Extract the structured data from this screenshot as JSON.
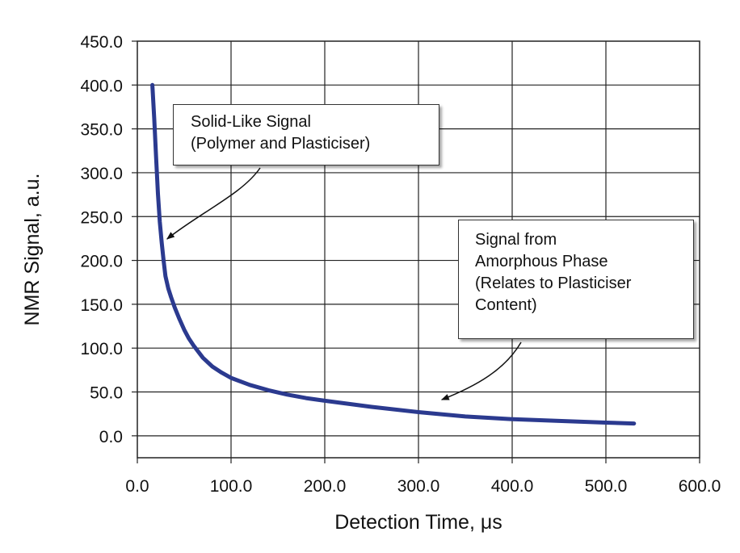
{
  "chart_data": {
    "type": "line",
    "title": "",
    "xlabel": "Detection Time, μs",
    "ylabel": "NMR Signal, a.u.",
    "xlim": [
      0,
      600
    ],
    "ylim": [
      -25,
      450
    ],
    "x_ticks": [
      "0.0",
      "100.0",
      "200.0",
      "300.0",
      "400.0",
      "500.0",
      "600.0"
    ],
    "y_ticks": [
      "0.0",
      "50.0",
      "100.0",
      "150.0",
      "200.0",
      "250.0",
      "300.0",
      "350.0",
      "400.0",
      "450.0"
    ],
    "grid": true,
    "line_color": "#2b3a8f",
    "series": [
      {
        "name": "",
        "x": [
          16,
          18,
          20,
          22,
          24,
          26,
          28,
          30,
          33,
          36,
          40,
          45,
          50,
          55,
          60,
          70,
          80,
          90,
          100,
          120,
          140,
          160,
          180,
          200,
          250,
          300,
          350,
          400,
          450,
          500,
          530
        ],
        "y": [
          400,
          362,
          318,
          276,
          244,
          220,
          200,
          182,
          168,
          158,
          146,
          133,
          121,
          111,
          103,
          89,
          79,
          72,
          66,
          58,
          52,
          47,
          43,
          40,
          33,
          27,
          22,
          19,
          17,
          15,
          14
        ]
      }
    ],
    "annotations": [
      {
        "lines": [
          "Solid-Like Signal",
          "(Polymer and Plasticiser)"
        ],
        "points_to": [
          30,
          230
        ]
      },
      {
        "lines": [
          "Signal from",
          "Amorphous Phase",
          "(Relates to Plasticiser",
          "Content)"
        ],
        "points_to": [
          330,
          32
        ]
      }
    ]
  }
}
